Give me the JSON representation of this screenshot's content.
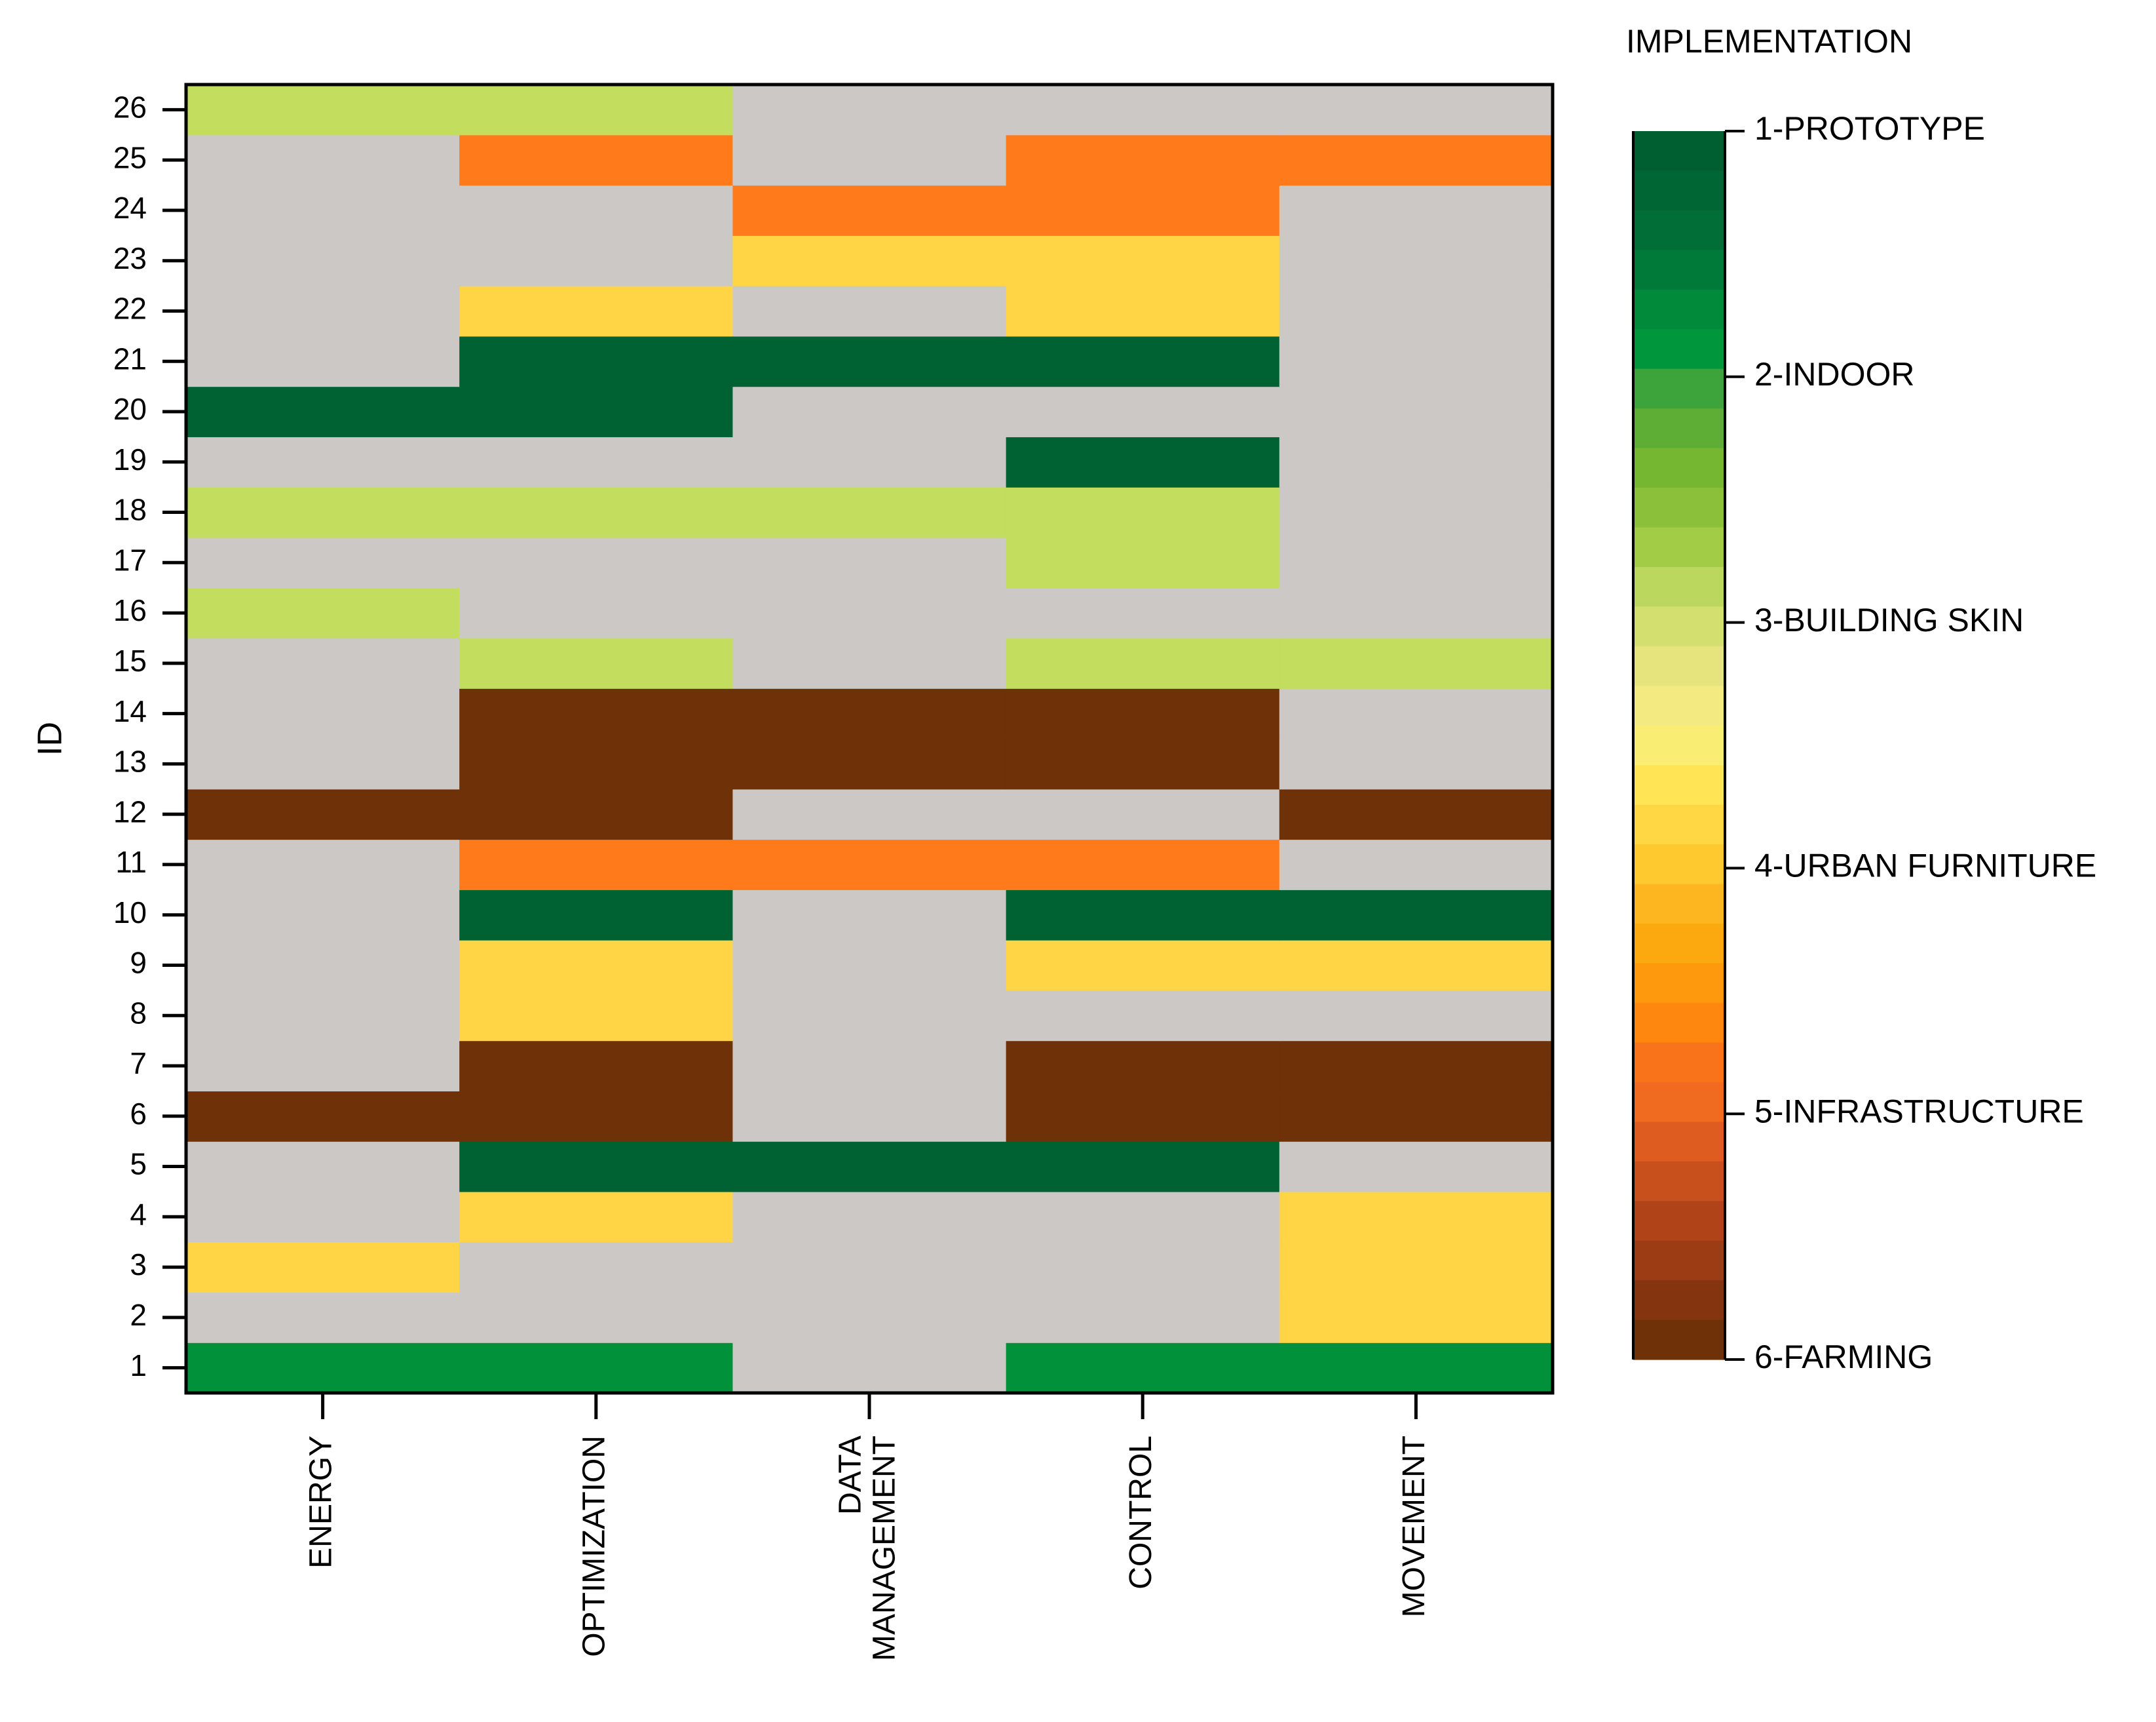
{
  "chart_data": {
    "type": "heatmap",
    "ylabel": "ID",
    "xlabel": "",
    "columns": [
      "ENERGY",
      "OPTIMIZATION",
      "DATA MANAGEMENT",
      "CONTROL",
      "MOVEMENT"
    ],
    "column_tick_labels": [
      [
        "ENERGY"
      ],
      [
        "OPTIMIZATION"
      ],
      [
        "DATA",
        "MANAGEMENT"
      ],
      [
        "CONTROL"
      ],
      [
        "MOVEMENT"
      ]
    ],
    "rows": [
      1,
      2,
      3,
      4,
      5,
      6,
      7,
      8,
      9,
      10,
      11,
      12,
      13,
      14,
      15,
      16,
      17,
      18,
      19,
      20,
      21,
      22,
      23,
      24,
      25,
      26
    ],
    "values_note": "Implementation category per ID and topic; 0 = not present; rows listed from ID 1 to ID 26; columns follow 'columns' order",
    "values": [
      [
        2,
        2,
        0,
        2,
        2
      ],
      [
        0,
        0,
        0,
        0,
        4
      ],
      [
        4,
        0,
        0,
        0,
        4
      ],
      [
        0,
        4,
        0,
        0,
        4
      ],
      [
        0,
        1,
        1,
        1,
        0
      ],
      [
        6,
        6,
        0,
        6,
        6
      ],
      [
        0,
        6,
        0,
        6,
        6
      ],
      [
        0,
        4,
        0,
        0,
        0
      ],
      [
        0,
        4,
        0,
        4,
        4
      ],
      [
        0,
        1,
        0,
        1,
        1
      ],
      [
        0,
        5,
        5,
        5,
        0
      ],
      [
        6,
        6,
        0,
        0,
        6
      ],
      [
        0,
        6,
        6,
        6,
        0
      ],
      [
        0,
        6,
        6,
        6,
        0
      ],
      [
        0,
        3,
        0,
        3,
        3
      ],
      [
        3,
        0,
        0,
        0,
        0
      ],
      [
        0,
        0,
        0,
        3,
        0
      ],
      [
        3,
        3,
        3,
        3,
        0
      ],
      [
        0,
        0,
        0,
        1,
        0
      ],
      [
        1,
        1,
        0,
        0,
        0
      ],
      [
        0,
        1,
        1,
        1,
        0
      ],
      [
        0,
        4,
        0,
        4,
        0
      ],
      [
        0,
        0,
        4,
        4,
        0
      ],
      [
        0,
        0,
        5,
        5,
        0
      ],
      [
        0,
        5,
        0,
        5,
        5
      ],
      [
        3,
        3,
        0,
        0,
        0
      ]
    ],
    "category_colors": {
      "0": "#cbc8c5",
      "1": "#006132",
      "2": "#00913a",
      "3": "#c3dd5f",
      "4": "#ffd545",
      "5": "#ff7a1a",
      "6": "#6f3107"
    },
    "colorbar": {
      "title": "IMPLEMENTATION",
      "labels": [
        "1-PROTOTYPE",
        "2-INDOOR",
        "3-BUILDING SKIN",
        "4-URBAN FURNITURE",
        "5-INFRASTRUCTURE",
        "6-FARMING"
      ],
      "colors": [
        "#005f31",
        "#006633",
        "#006e36",
        "#007a38",
        "#008a3a",
        "#00973c",
        "#3da33b",
        "#5eae36",
        "#76b731",
        "#8ac03a",
        "#a2cc45",
        "#bcd75e",
        "#d3e070",
        "#e6e47c",
        "#f4ea82",
        "#f9ed73",
        "#ffe455",
        "#ffd643",
        "#fec82f",
        "#fdb620",
        "#fca90f",
        "#fe980c",
        "#fe8710",
        "#f8731a",
        "#f06a20",
        "#de5c1f",
        "#c7501d",
        "#b14319",
        "#9b3c15",
        "#84350f",
        "#6e3108"
      ]
    }
  }
}
